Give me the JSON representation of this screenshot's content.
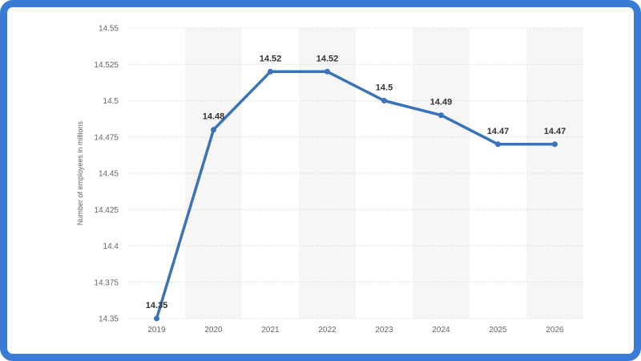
{
  "colors": {
    "frame": "#3a7bd5",
    "line": "#3a73b8",
    "band": "#f6f6f6",
    "grid": "#cccccc"
  },
  "chart_data": {
    "type": "line",
    "categories": [
      "2019",
      "2020",
      "2021",
      "2022",
      "2023",
      "2024",
      "2025",
      "2026"
    ],
    "series": [
      {
        "values": [
          14.35,
          14.48,
          14.52,
          14.52,
          14.5,
          14.49,
          14.47,
          14.47
        ],
        "labels": [
          "14.35",
          "14.48",
          "14.52",
          "14.52",
          "14.5",
          "14.49",
          "14.47",
          "14.47"
        ]
      }
    ],
    "ylabel": "Number of employees in millions",
    "ylim": [
      14.35,
      14.55
    ],
    "yticks": [
      "14.35",
      "14.375",
      "14.4",
      "14.425",
      "14.45",
      "14.475",
      "14.5",
      "14.525",
      "14.55"
    ],
    "grid": true
  }
}
